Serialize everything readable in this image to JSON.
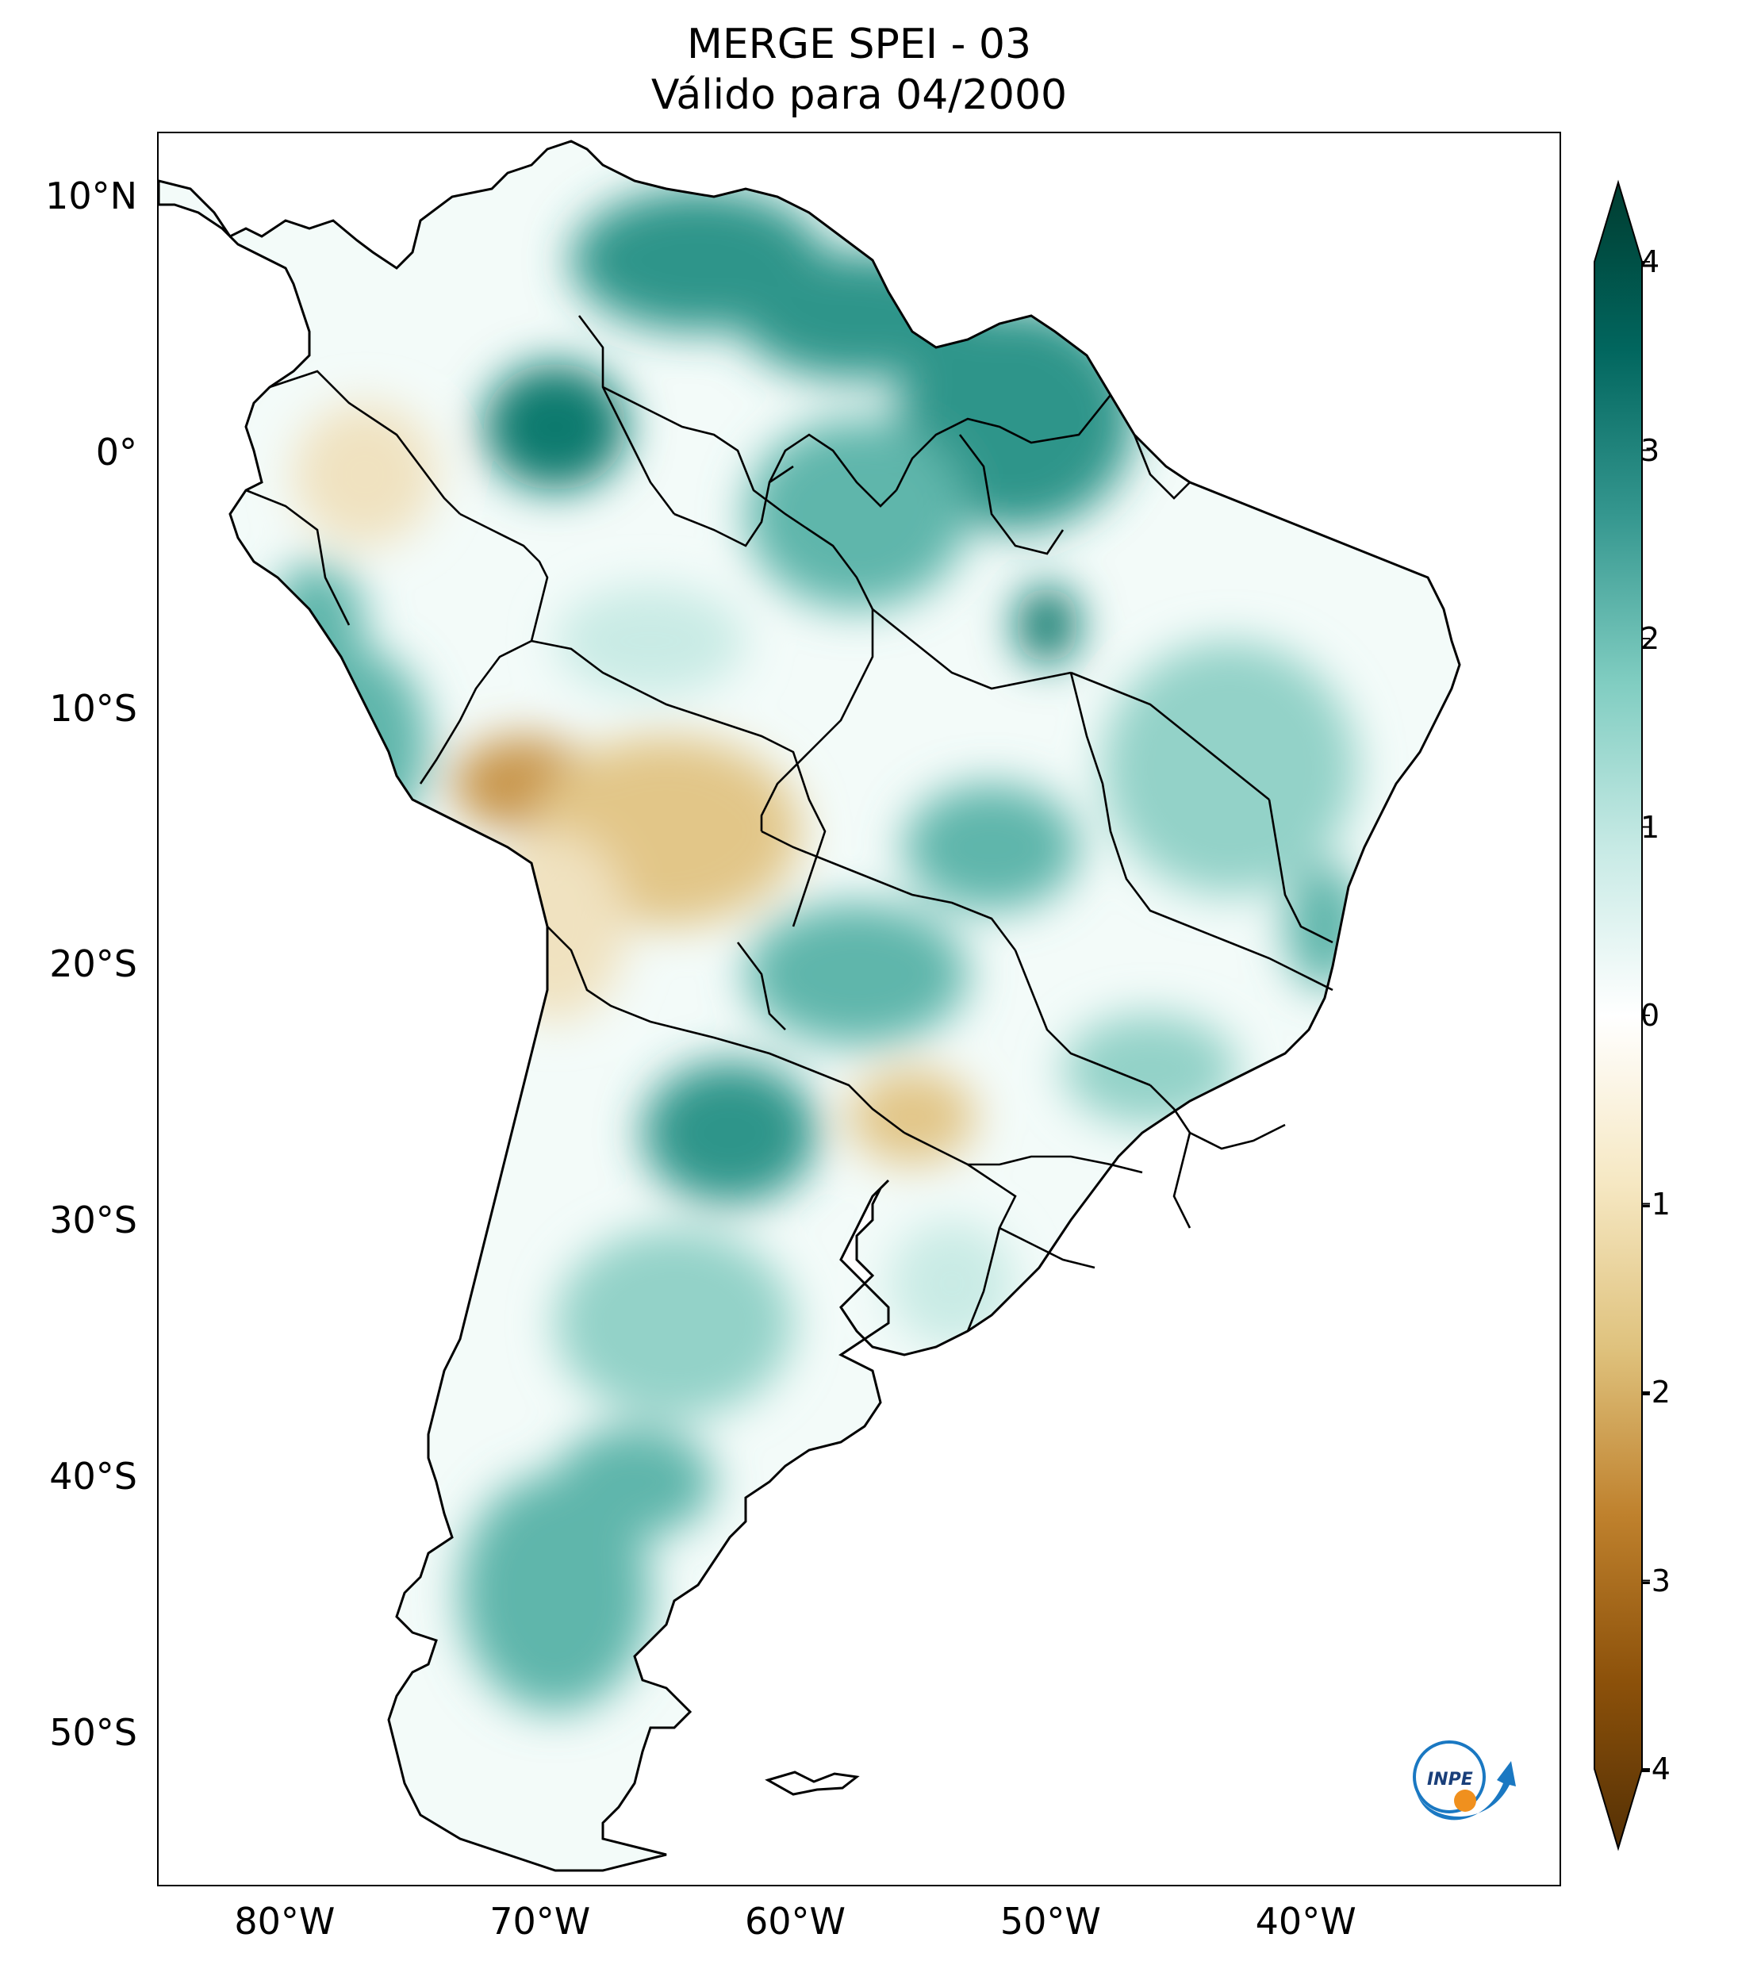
{
  "title": {
    "line1": "MERGE   SPEI - 03",
    "line2": "Válido para 04/2000"
  },
  "map": {
    "region": "South America",
    "variable": "SPEI - 03",
    "lat_range": [
      -56,
      12.5
    ],
    "lon_range": [
      -85,
      -30
    ],
    "lat_ticks": [
      {
        "value": 10,
        "label": "10°N"
      },
      {
        "value": 0,
        "label": "0°"
      },
      {
        "value": -10,
        "label": "10°S"
      },
      {
        "value": -20,
        "label": "20°S"
      },
      {
        "value": -30,
        "label": "30°S"
      },
      {
        "value": -40,
        "label": "40°S"
      },
      {
        "value": -50,
        "label": "50°S"
      }
    ],
    "lon_ticks": [
      {
        "value": -80,
        "label": "80°W"
      },
      {
        "value": -70,
        "label": "70°W"
      },
      {
        "value": -60,
        "label": "60°W"
      },
      {
        "value": -50,
        "label": "50°W"
      },
      {
        "value": -40,
        "label": "40°W"
      }
    ]
  },
  "colorbar": {
    "colormap": "BrBG",
    "min": -4,
    "max": 4,
    "ticks": [
      {
        "value": 4,
        "label": "4"
      },
      {
        "value": 3,
        "label": "3"
      },
      {
        "value": 2,
        "label": "2"
      },
      {
        "value": 1,
        "label": "1"
      },
      {
        "value": 0,
        "label": "0"
      },
      {
        "value": -1,
        "label": "-1"
      },
      {
        "value": -2,
        "label": "-2"
      },
      {
        "value": -3,
        "label": "-3"
      },
      {
        "value": -4,
        "label": "-4"
      }
    ],
    "colors": [
      "#543005",
      "#8c510a",
      "#bf812d",
      "#dfc27d",
      "#f6e8c3",
      "#ffffff",
      "#c7eae5",
      "#80cdc1",
      "#35978f",
      "#01665e",
      "#003c30"
    ]
  },
  "logo": {
    "label": "INPE",
    "accent_blue": "#1a78c2",
    "accent_orange": "#f0901e"
  }
}
